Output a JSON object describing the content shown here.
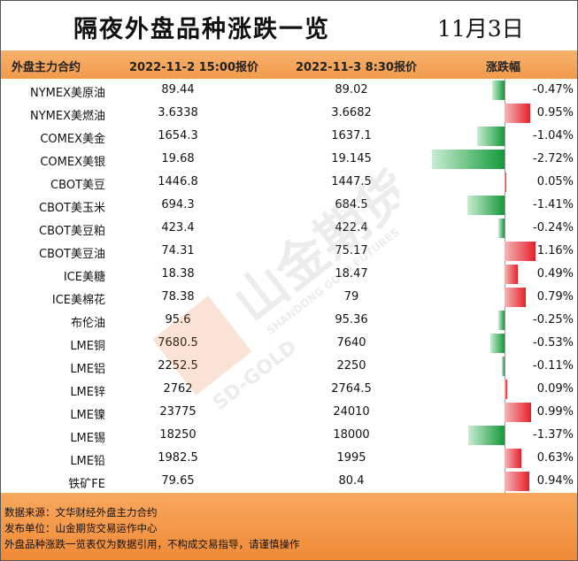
{
  "header": {
    "title": "隔夜外盘品种涨跌一览",
    "date": "11月3日"
  },
  "table": {
    "columns": [
      "外盘主力合约",
      "2022-11-2 15:00报价",
      "2022-11-3 8:30报价",
      "涨跌幅"
    ],
    "rows": [
      {
        "name": "NYMEX美原油",
        "prev": "89.44",
        "curr": "89.02",
        "change": "-0.47%",
        "pct": -0.47
      },
      {
        "name": "NYMEX美燃油",
        "prev": "3.6338",
        "curr": "3.6682",
        "change": "0.95%",
        "pct": 0.95
      },
      {
        "name": "COMEX美金",
        "prev": "1654.3",
        "curr": "1637.1",
        "change": "-1.04%",
        "pct": -1.04
      },
      {
        "name": "COMEX美银",
        "prev": "19.68",
        "curr": "19.145",
        "change": "-2.72%",
        "pct": -2.72
      },
      {
        "name": "CBOT美豆",
        "prev": "1446.8",
        "curr": "1447.5",
        "change": "0.05%",
        "pct": 0.05
      },
      {
        "name": "CBOT美玉米",
        "prev": "694.3",
        "curr": "684.5",
        "change": "-1.41%",
        "pct": -1.41
      },
      {
        "name": "CBOT美豆粕",
        "prev": "423.4",
        "curr": "422.4",
        "change": "-0.24%",
        "pct": -0.24
      },
      {
        "name": "CBOT美豆油",
        "prev": "74.31",
        "curr": "75.17",
        "change": "1.16%",
        "pct": 1.16
      },
      {
        "name": "ICE美糖",
        "prev": "18.38",
        "curr": "18.47",
        "change": "0.49%",
        "pct": 0.49
      },
      {
        "name": "ICE美棉花",
        "prev": "78.38",
        "curr": "79",
        "change": "0.79%",
        "pct": 0.79
      },
      {
        "name": "布伦油",
        "prev": "95.6",
        "curr": "95.36",
        "change": "-0.25%",
        "pct": -0.25
      },
      {
        "name": "LME铜",
        "prev": "7680.5",
        "curr": "7640",
        "change": "-0.53%",
        "pct": -0.53
      },
      {
        "name": "LME铝",
        "prev": "2252.5",
        "curr": "2250",
        "change": "-0.11%",
        "pct": -0.11
      },
      {
        "name": "LME锌",
        "prev": "2762",
        "curr": "2764.5",
        "change": "0.09%",
        "pct": 0.09
      },
      {
        "name": "LME镍",
        "prev": "23775",
        "curr": "24010",
        "change": "0.99%",
        "pct": 0.99
      },
      {
        "name": "LME锡",
        "prev": "18250",
        "curr": "18000",
        "change": "-1.37%",
        "pct": -1.37
      },
      {
        "name": "LME铅",
        "prev": "1982.5",
        "curr": "1995",
        "change": "0.63%",
        "pct": 0.63
      },
      {
        "name": "铁矿FE",
        "prev": "79.65",
        "curr": "80.4",
        "change": "0.94%",
        "pct": 0.94
      }
    ]
  },
  "footer": {
    "source": "数据来源：文华财经外盘主力合约",
    "publisher": "发布单位：山金期货交易运作中心",
    "disclaimer": "外盘品种涨跌一览表仅为数据引用，不构成交易指导，请谨慎操作"
  },
  "watermark": {
    "brand_cn": "山金期货",
    "brand_en": "SHANDONG GOLD FUTURES",
    "logo_text": "SD-GOLD"
  },
  "colors": {
    "up": "#e8202a",
    "down": "#139a3a",
    "header": "#f19a4b",
    "footer": "#f08a36"
  }
}
